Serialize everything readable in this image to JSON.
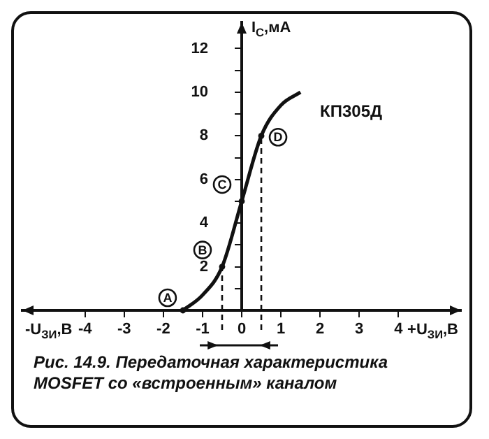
{
  "chart_data": {
    "type": "line",
    "title": "Рис. 14.9. Передаточная характеристика MOSFET со «встроенным» каналом",
    "xlabel": "+U$_{ЗИ}$,В",
    "ylabel": "I$_{С}$,мА",
    "annotations": [
      "-U$_{ЗИ}$,В",
      {
        "text": "A",
        "x": -1.5,
        "y": 0
      },
      {
        "text": "B",
        "x": -0.5,
        "y": 2
      },
      {
        "text": "C",
        "x": 0,
        "y": 5
      },
      {
        "text": "D",
        "x": 0.5,
        "y": 8
      }
    ],
    "ref_lines": [
      {
        "axis": "x",
        "value": -0.5,
        "line_style": "dashed"
      },
      {
        "axis": "x",
        "value": 0.5,
        "line_style": "dashed"
      }
    ],
    "x": [
      -1.5,
      -1,
      -0.5,
      0,
      0.5,
      1,
      1.5
    ],
    "series": [
      {
        "name": "КП305Д",
        "color": "#111111",
        "values": [
          0,
          0.7,
          2,
          5,
          8,
          9.4,
          10
        ]
      }
    ],
    "xlim": [
      -5.6,
      5.6
    ],
    "xticks": [
      -4,
      -3,
      -2,
      -1,
      0,
      1,
      2,
      3,
      4
    ],
    "ylim": [
      0,
      13.2
    ],
    "yticks": [
      {
        "value": 1,
        "label": null
      },
      2,
      {
        "value": 3,
        "label": null
      },
      4,
      {
        "value": 5,
        "label": null
      },
      6,
      {
        "value": 7,
        "label": null
      },
      8,
      {
        "value": 9,
        "label": null
      },
      10,
      {
        "value": 11,
        "label": null
      },
      12
    ],
    "grid": false,
    "legend": false,
    "line_style": "solid"
  }
}
